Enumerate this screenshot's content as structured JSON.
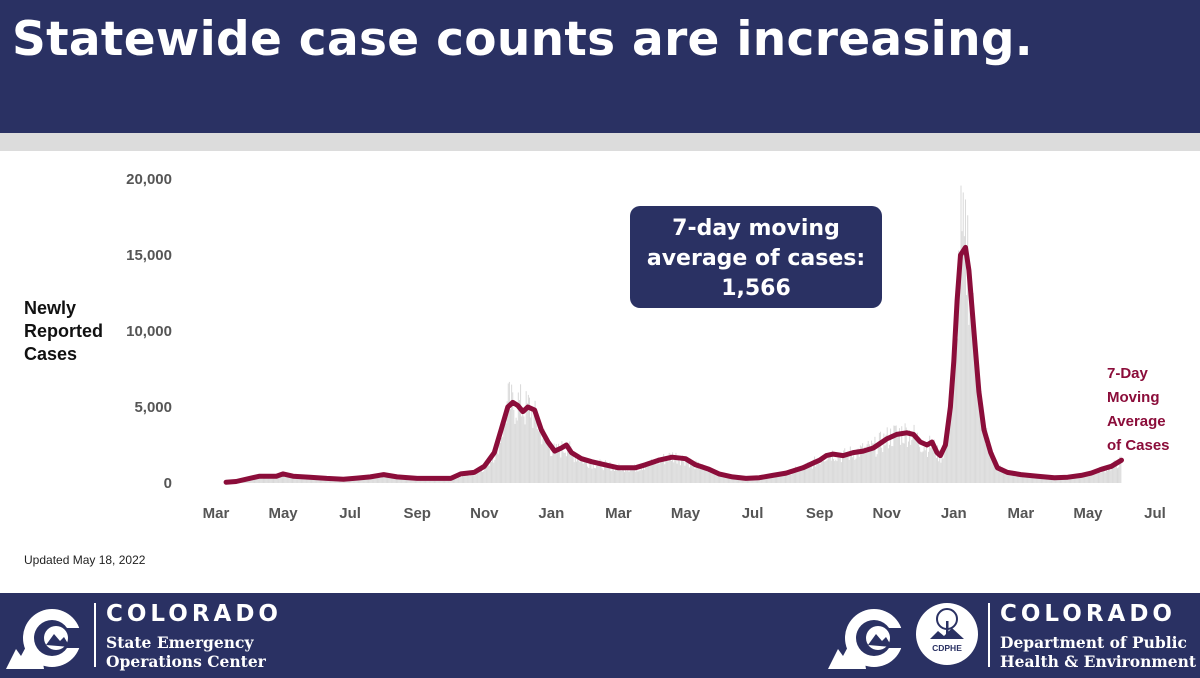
{
  "header": {
    "title": "Statewide case counts are increasing."
  },
  "chart_data": {
    "type": "bar",
    "title": "",
    "ylabel": [
      "Newly",
      "Reported",
      "Cases"
    ],
    "xlabel": "",
    "ylim": [
      0,
      20000
    ],
    "yticks": [
      0,
      5000,
      10000,
      15000,
      20000
    ],
    "ytick_labels": [
      "0",
      "5,000",
      "10,000",
      "15,000",
      "20,000"
    ],
    "x_range": [
      0,
      28
    ],
    "xtick_labels": [
      {
        "pos": 0,
        "label": "Mar"
      },
      {
        "pos": 2,
        "label": "May"
      },
      {
        "pos": 4,
        "label": "Jul"
      },
      {
        "pos": 6,
        "label": "Sep"
      },
      {
        "pos": 8,
        "label": "Nov"
      },
      {
        "pos": 10,
        "label": "Jan"
      },
      {
        "pos": 12,
        "label": "Mar"
      },
      {
        "pos": 14,
        "label": "May"
      },
      {
        "pos": 16,
        "label": "Jul"
      },
      {
        "pos": 18,
        "label": "Sep"
      },
      {
        "pos": 20,
        "label": "Nov"
      },
      {
        "pos": 22,
        "label": "Jan"
      },
      {
        "pos": 24,
        "label": "Mar"
      },
      {
        "pos": 26,
        "label": "May"
      },
      {
        "pos": 28,
        "label": "Jul"
      }
    ],
    "series": [
      {
        "name": "7-Day Moving Average of Cases",
        "legend_lines": [
          "7-Day",
          "Moving",
          "Average",
          "of Cases"
        ],
        "type": "line",
        "color": "#8b0d3a",
        "points": [
          [
            0.3,
            50
          ],
          [
            0.6,
            100
          ],
          [
            1.0,
            300
          ],
          [
            1.3,
            450
          ],
          [
            1.6,
            450
          ],
          [
            1.8,
            450
          ],
          [
            2.0,
            600
          ],
          [
            2.3,
            450
          ],
          [
            2.8,
            380
          ],
          [
            3.3,
            300
          ],
          [
            3.8,
            250
          ],
          [
            4.2,
            320
          ],
          [
            4.6,
            400
          ],
          [
            5.0,
            550
          ],
          [
            5.4,
            400
          ],
          [
            6.0,
            300
          ],
          [
            6.5,
            300
          ],
          [
            7.0,
            300
          ],
          [
            7.3,
            600
          ],
          [
            7.7,
            700
          ],
          [
            8.0,
            1100
          ],
          [
            8.3,
            2000
          ],
          [
            8.5,
            3500
          ],
          [
            8.7,
            5000
          ],
          [
            8.85,
            5300
          ],
          [
            9.0,
            5100
          ],
          [
            9.15,
            4700
          ],
          [
            9.3,
            5000
          ],
          [
            9.5,
            4800
          ],
          [
            9.7,
            3500
          ],
          [
            9.9,
            2700
          ],
          [
            10.1,
            2100
          ],
          [
            10.3,
            2300
          ],
          [
            10.45,
            2500
          ],
          [
            10.6,
            2000
          ],
          [
            10.9,
            1600
          ],
          [
            11.2,
            1400
          ],
          [
            11.6,
            1200
          ],
          [
            12.0,
            1000
          ],
          [
            12.5,
            1000
          ],
          [
            12.8,
            1200
          ],
          [
            13.2,
            1500
          ],
          [
            13.6,
            1700
          ],
          [
            14.0,
            1600
          ],
          [
            14.3,
            1200
          ],
          [
            14.7,
            900
          ],
          [
            15.0,
            600
          ],
          [
            15.4,
            400
          ],
          [
            15.8,
            300
          ],
          [
            16.2,
            350
          ],
          [
            16.6,
            500
          ],
          [
            17.0,
            650
          ],
          [
            17.5,
            1000
          ],
          [
            17.8,
            1300
          ],
          [
            18.0,
            1500
          ],
          [
            18.2,
            1800
          ],
          [
            18.4,
            1900
          ],
          [
            18.7,
            1800
          ],
          [
            19.0,
            2000
          ],
          [
            19.3,
            2100
          ],
          [
            19.6,
            2300
          ],
          [
            19.8,
            2600
          ],
          [
            20.0,
            2900
          ],
          [
            20.3,
            3200
          ],
          [
            20.6,
            3300
          ],
          [
            20.8,
            3200
          ],
          [
            21.0,
            2700
          ],
          [
            21.2,
            2500
          ],
          [
            21.35,
            2700
          ],
          [
            21.5,
            2000
          ],
          [
            21.6,
            1800
          ],
          [
            21.75,
            2500
          ],
          [
            21.9,
            5000
          ],
          [
            22.0,
            8000
          ],
          [
            22.1,
            12000
          ],
          [
            22.2,
            15000
          ],
          [
            22.35,
            15500
          ],
          [
            22.45,
            14000
          ],
          [
            22.6,
            10000
          ],
          [
            22.75,
            6000
          ],
          [
            22.9,
            3500
          ],
          [
            23.1,
            2000
          ],
          [
            23.3,
            1000
          ],
          [
            23.6,
            700
          ],
          [
            24.0,
            550
          ],
          [
            24.5,
            450
          ],
          [
            25.0,
            350
          ],
          [
            25.4,
            380
          ],
          [
            25.8,
            500
          ],
          [
            26.1,
            650
          ],
          [
            26.4,
            900
          ],
          [
            26.7,
            1100
          ],
          [
            27.0,
            1500
          ]
        ]
      },
      {
        "name": "Daily reported cases",
        "type": "bar",
        "color": "#d9d9d9",
        "peaks": [
          [
            0.3,
            80
          ],
          [
            1.0,
            350
          ],
          [
            1.6,
            520
          ],
          [
            2.0,
            680
          ],
          [
            2.8,
            420
          ],
          [
            3.8,
            300
          ],
          [
            4.6,
            480
          ],
          [
            5.0,
            650
          ],
          [
            6.0,
            380
          ],
          [
            7.0,
            400
          ],
          [
            7.7,
            850
          ],
          [
            8.0,
            1400
          ],
          [
            8.3,
            2500
          ],
          [
            8.5,
            4200
          ],
          [
            8.7,
            6900
          ],
          [
            8.85,
            6500
          ],
          [
            9.0,
            6800
          ],
          [
            9.2,
            6200
          ],
          [
            9.35,
            6500
          ],
          [
            9.5,
            5500
          ],
          [
            9.7,
            4200
          ],
          [
            9.9,
            3200
          ],
          [
            10.1,
            2600
          ],
          [
            10.3,
            2900
          ],
          [
            10.45,
            3100
          ],
          [
            10.6,
            2500
          ],
          [
            10.9,
            2000
          ],
          [
            11.2,
            1700
          ],
          [
            11.6,
            1500
          ],
          [
            12.0,
            1300
          ],
          [
            12.5,
            1250
          ],
          [
            12.8,
            1500
          ],
          [
            13.2,
            1900
          ],
          [
            13.6,
            2300
          ],
          [
            14.0,
            2000
          ],
          [
            14.3,
            1500
          ],
          [
            14.7,
            1100
          ],
          [
            15.0,
            750
          ],
          [
            15.4,
            500
          ],
          [
            15.8,
            380
          ],
          [
            16.2,
            450
          ],
          [
            16.6,
            650
          ],
          [
            17.0,
            850
          ],
          [
            17.5,
            1300
          ],
          [
            17.8,
            1700
          ],
          [
            18.0,
            2000
          ],
          [
            18.2,
            2400
          ],
          [
            18.4,
            2500
          ],
          [
            18.7,
            2300
          ],
          [
            19.0,
            2600
          ],
          [
            19.3,
            2800
          ],
          [
            19.6,
            3000
          ],
          [
            19.8,
            3400
          ],
          [
            20.0,
            3800
          ],
          [
            20.3,
            4200
          ],
          [
            20.6,
            4300
          ],
          [
            20.8,
            4000
          ],
          [
            21.0,
            3400
          ],
          [
            21.2,
            3100
          ],
          [
            21.35,
            3300
          ],
          [
            21.5,
            2500
          ],
          [
            21.6,
            2300
          ],
          [
            21.75,
            3200
          ],
          [
            21.9,
            6500
          ],
          [
            22.0,
            11000
          ],
          [
            22.1,
            16000
          ],
          [
            22.2,
            20200
          ],
          [
            22.3,
            19000
          ],
          [
            22.4,
            19800
          ],
          [
            22.5,
            16000
          ],
          [
            22.6,
            12000
          ],
          [
            22.75,
            7500
          ],
          [
            22.9,
            4500
          ],
          [
            23.1,
            2600
          ],
          [
            23.3,
            1300
          ],
          [
            23.6,
            900
          ],
          [
            24.0,
            700
          ],
          [
            24.5,
            550
          ],
          [
            25.0,
            450
          ],
          [
            25.4,
            480
          ],
          [
            25.8,
            650
          ],
          [
            26.1,
            850
          ],
          [
            26.4,
            1150
          ],
          [
            26.7,
            1400
          ],
          [
            27.0,
            1900
          ]
        ]
      }
    ],
    "annotation": {
      "lines": [
        "7-day moving",
        "average of cases:",
        "1,566"
      ],
      "box_color": "#2a3163"
    }
  },
  "updated": "Updated May 18, 2022",
  "footer": {
    "left": {
      "brand": "COLORADO",
      "sub_lines": [
        "State Emergency",
        "Operations Center"
      ]
    },
    "right": {
      "badge": "CDPHE",
      "brand": "COLORADO",
      "sub_lines": [
        "Department of Public",
        "Health & Environment"
      ]
    }
  }
}
